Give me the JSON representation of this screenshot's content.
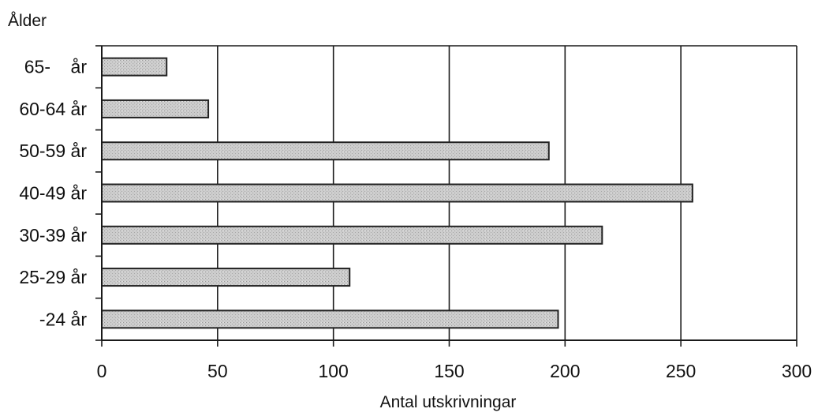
{
  "chart_data": {
    "type": "bar",
    "orientation": "horizontal",
    "title": "",
    "ylabel": "Ålder",
    "xlabel": "Antal utskrivningar",
    "categories": [
      "65-    år",
      "60-64 år",
      "50-59 år",
      "40-49 år",
      "30-39 år",
      "25-29 år",
      "-24 år"
    ],
    "values": [
      28,
      46,
      193,
      255,
      216,
      107,
      197
    ],
    "xlim": [
      0,
      300
    ],
    "xticks": [
      "0",
      "50",
      "100",
      "150",
      "200",
      "250",
      "300"
    ],
    "grid": "vertical",
    "legend": "none",
    "bar_color": "#c4c4c4",
    "bar_edge_color": "#222222"
  }
}
